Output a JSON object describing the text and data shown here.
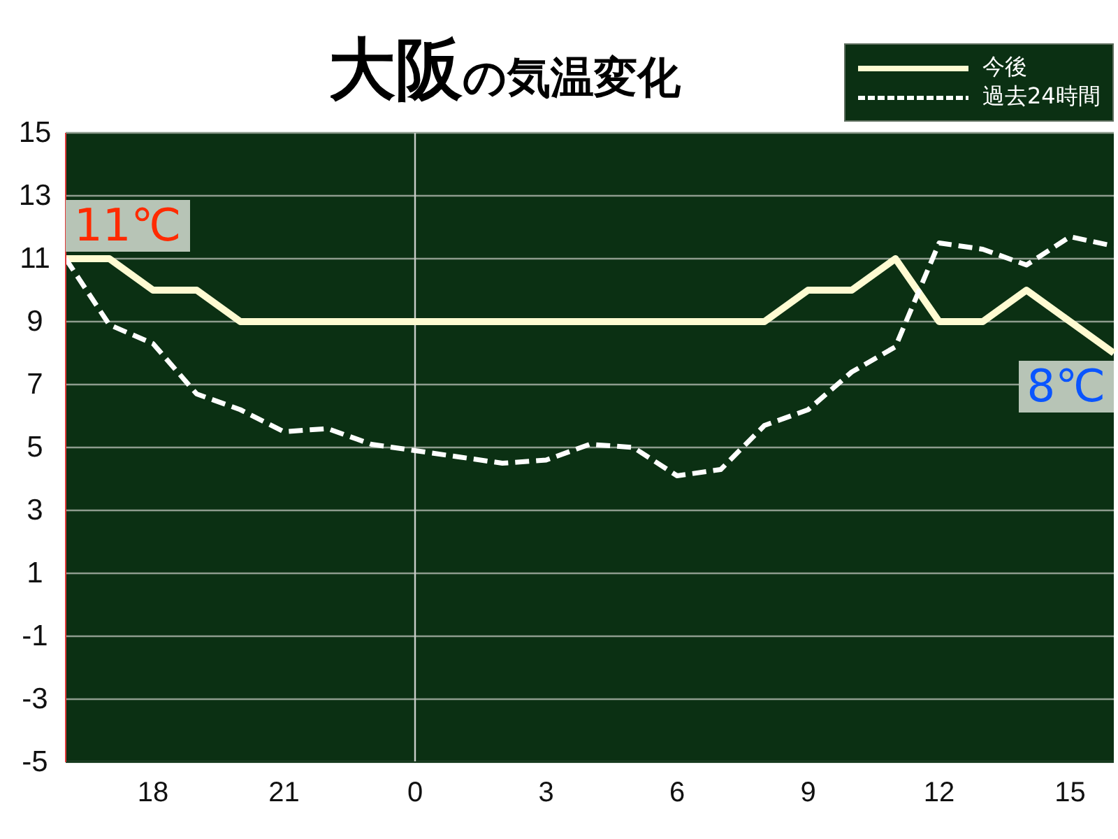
{
  "chart_data": {
    "type": "line",
    "title": "大阪の気温変化",
    "categories": [
      null,
      null,
      "18",
      null,
      null,
      "21",
      null,
      null,
      "0",
      null,
      null,
      "3",
      null,
      null,
      "6",
      null,
      null,
      "9",
      null,
      null,
      "12",
      null,
      null,
      "15",
      null
    ],
    "series": [
      {
        "name": "今後",
        "color": "#fffbd2",
        "line_style": "solid",
        "values": [
          11,
          11,
          10,
          10,
          9,
          9,
          9,
          9,
          9,
          9,
          9,
          9,
          9,
          9,
          9,
          9,
          9,
          10,
          10,
          11,
          9,
          9,
          10,
          9,
          8
        ]
      },
      {
        "name": "過去24時間",
        "color": "#ffffff",
        "line_style": "dashed",
        "values": [
          11,
          8.9,
          8.3,
          6.7,
          6.2,
          5.5,
          5.6,
          5.1,
          4.9,
          4.7,
          4.5,
          4.6,
          5.1,
          5.0,
          4.1,
          4.3,
          5.7,
          6.2,
          7.4,
          8.2,
          11.5,
          11.3,
          10.8,
          11.7,
          11.4
        ]
      }
    ],
    "ylim": [
      -5,
      15
    ],
    "yticks": [
      -5,
      -3,
      -1,
      1,
      3,
      5,
      7,
      9,
      11,
      13,
      15
    ],
    "grid": "y",
    "marker": "none",
    "legend": "top right",
    "ref_lines": [
      {
        "axis": "x",
        "value": "0",
        "color": "#c8ccc8"
      }
    ],
    "annotations": [
      "11℃",
      "8℃"
    ]
  }
}
